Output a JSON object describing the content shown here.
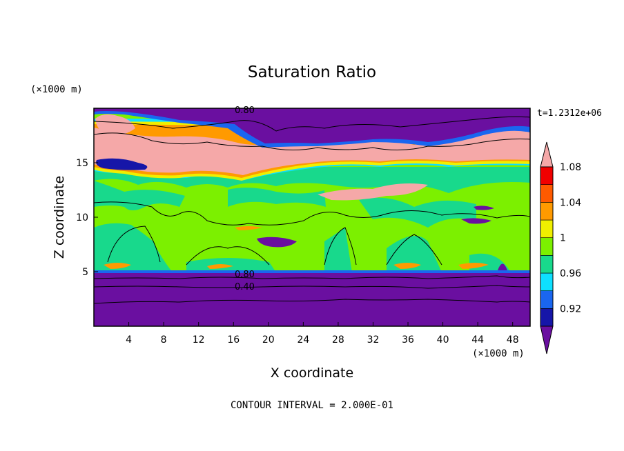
{
  "chart_data": {
    "type": "heatmap",
    "title": "Saturation Ratio",
    "xlabel": "X coordinate",
    "ylabel": "Z coordinate",
    "x_unit": "(×1000 m)",
    "y_unit": "(×1000 m)",
    "time_label": "t=1.2312e+06",
    "footer": "CONTOUR INTERVAL = 2.000E-01",
    "xlim": [
      0,
      50
    ],
    "ylim": [
      0,
      20
    ],
    "x_ticks": [
      4,
      8,
      12,
      16,
      20,
      24,
      28,
      32,
      36,
      40,
      44,
      48
    ],
    "y_ticks": [
      5,
      10,
      15
    ],
    "colorbar": {
      "levels": [
        0.92,
        0.96,
        1,
        1.04,
        1.08
      ],
      "colors": [
        "#6a0fa0",
        "#1616a8",
        "#1a66f0",
        "#0ee0ff",
        "#18d98c",
        "#7cf000",
        "#f0ef00",
        "#ff9a00",
        "#ff5a00",
        "#f00000",
        "#f5a8a8"
      ]
    },
    "contour_labels": [
      "0.80",
      "0.80",
      "0.40"
    ],
    "layers": [
      {
        "z_range": [
          0,
          5
        ],
        "value": "below 0.92"
      },
      {
        "z_range": [
          5,
          14.5
        ],
        "value": "0.98 to 1.02"
      },
      {
        "z_range": [
          14.5,
          17.5
        ],
        "value": "above 1.08"
      },
      {
        "z_range": [
          18,
          20
        ],
        "value": "below 0.92"
      }
    ]
  },
  "colors": {
    "purple": "#6a0fa0",
    "navy": "#1616a8",
    "blue": "#1a66f0",
    "cyan": "#0ee0ff",
    "teal": "#18d98c",
    "green": "#7cf000",
    "yellow": "#f0ef00",
    "orange": "#ff9a00",
    "red": "#ff3c00",
    "pink": "#f5a8a8"
  }
}
